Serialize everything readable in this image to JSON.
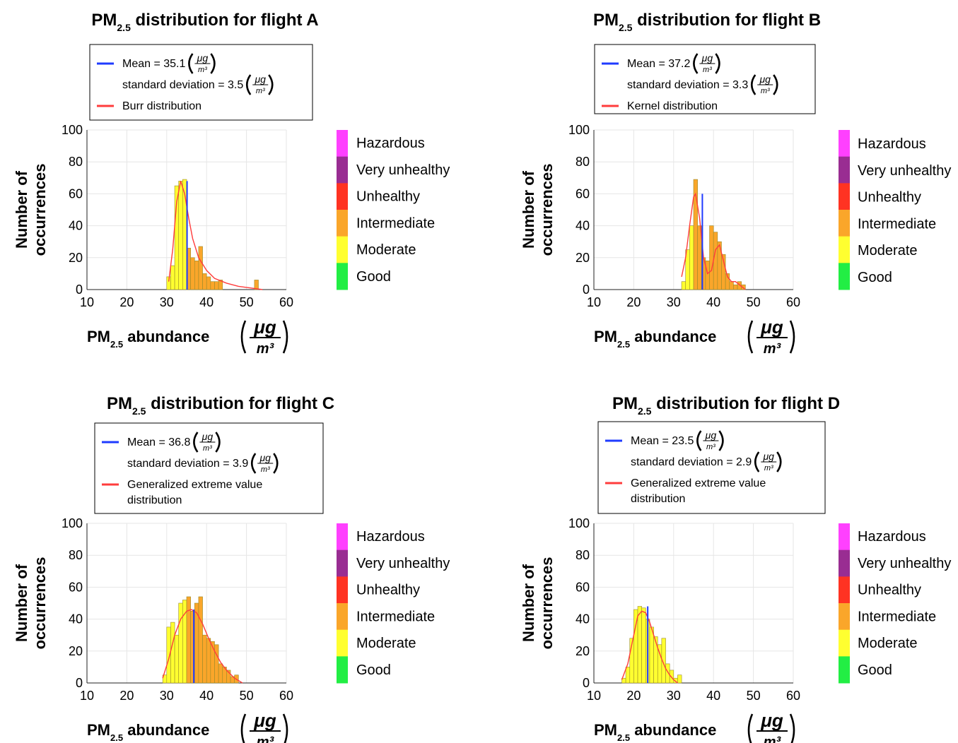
{
  "aqi_scale": {
    "labels": [
      "Hazardous",
      "Very unhealthy",
      "Unhealthy",
      "Intermediate",
      "Moderate",
      "Good"
    ],
    "colors": [
      "#ff40ff",
      "#992d92",
      "#ff3322",
      "#faa62a",
      "#ffff30",
      "#22ee44"
    ]
  },
  "line_colors": {
    "mean": "#1f3bff",
    "fit": "#ff3c3c"
  },
  "bar_stroke": "#9a8a2a",
  "chart_data": [
    {
      "type": "bar",
      "title_main": "PM",
      "title_sub": "2.5",
      "title_rest": " distribution for flight A",
      "xlabel_main": "PM",
      "xlabel_sub": "2.5",
      "xlabel_rest": " abundance",
      "unit_num": "μg",
      "unit_den": "m³",
      "ylabel_lines": [
        "Number of",
        "occurrences"
      ],
      "xlim": [
        10,
        60
      ],
      "ylim": [
        0,
        100
      ],
      "xticks": [
        10,
        20,
        30,
        40,
        50,
        60
      ],
      "yticks": [
        0,
        20,
        40,
        60,
        80,
        100
      ],
      "grid": true,
      "bin_width": 1,
      "bin_starts": [
        30,
        31,
        32,
        33,
        34,
        35,
        36,
        37,
        38,
        39,
        40,
        41,
        42,
        43,
        52
      ],
      "counts": [
        8,
        15,
        65,
        68,
        69,
        26,
        20,
        18,
        27,
        10,
        8,
        5,
        5,
        6,
        6
      ],
      "mean": 35.1,
      "mean_peak": 68,
      "legend_mean": "Mean = 35.1",
      "legend_sd": "standard deviation = 3.5",
      "legend_fit": [
        "Burr distribution"
      ],
      "fit": {
        "x": [
          30.5,
          31.5,
          32.5,
          33.5,
          34.5,
          35.5,
          36.5,
          38,
          40,
          42,
          45,
          48,
          51,
          54
        ],
        "y": [
          5,
          25,
          55,
          68,
          60,
          45,
          32,
          20,
          12,
          7,
          4,
          2,
          1,
          0
        ]
      }
    },
    {
      "type": "bar",
      "title_main": "PM",
      "title_sub": "2.5",
      "title_rest": " distribution for flight B",
      "xlabel_main": "PM",
      "xlabel_sub": "2.5",
      "xlabel_rest": " abundance",
      "unit_num": "μg",
      "unit_den": "m³",
      "ylabel_lines": [
        "Number of",
        "occurrences"
      ],
      "xlim": [
        10,
        60
      ],
      "ylim": [
        0,
        100
      ],
      "xticks": [
        10,
        20,
        30,
        40,
        50,
        60
      ],
      "yticks": [
        0,
        20,
        40,
        60,
        80,
        100
      ],
      "grid": true,
      "bin_width": 1,
      "bin_starts": [
        32,
        33,
        34,
        35,
        36,
        37,
        38,
        39,
        40,
        41,
        42,
        43,
        44,
        45,
        46,
        47
      ],
      "counts": [
        5,
        25,
        40,
        69,
        40,
        20,
        18,
        40,
        36,
        30,
        22,
        10,
        5,
        3,
        5,
        3
      ],
      "mean": 37.2,
      "mean_peak": 60,
      "legend_mean": "Mean = 37.2",
      "legend_sd": "standard deviation = 3.3",
      "legend_fit": [
        "Kernel distribution"
      ],
      "fit": {
        "x": [
          32,
          33,
          34,
          35,
          35.5,
          36.5,
          37.5,
          38.5,
          39.5,
          40.5,
          41.5,
          42.5,
          43.5,
          44.5,
          45.5,
          46.5,
          48
        ],
        "y": [
          8,
          20,
          40,
          58,
          60,
          45,
          20,
          10,
          12,
          25,
          28,
          18,
          8,
          5,
          5,
          3,
          0
        ]
      }
    },
    {
      "type": "bar",
      "title_main": "PM",
      "title_sub": "2.5",
      "title_rest": " distribution for flight C",
      "xlabel_main": "PM",
      "xlabel_sub": "2.5",
      "xlabel_rest": " abundance",
      "unit_num": "μg",
      "unit_den": "m³",
      "ylabel_lines": [
        "Number of",
        "occurrences"
      ],
      "xlim": [
        10,
        60
      ],
      "ylim": [
        0,
        100
      ],
      "xticks": [
        10,
        20,
        30,
        40,
        50,
        60
      ],
      "yticks": [
        0,
        20,
        40,
        60,
        80,
        100
      ],
      "grid": true,
      "bin_width": 1,
      "bin_starts": [
        29,
        30,
        31,
        32,
        33,
        34,
        35,
        36,
        37,
        38,
        39,
        40,
        41,
        42,
        43,
        44,
        45,
        46,
        47
      ],
      "counts": [
        5,
        35,
        38,
        30,
        50,
        52,
        54,
        45,
        50,
        54,
        30,
        28,
        26,
        24,
        12,
        10,
        8,
        4,
        5
      ],
      "mean": 36.8,
      "mean_peak": 46,
      "legend_mean": "Mean = 36.8",
      "legend_sd": "standard deviation = 3.9",
      "legend_fit": [
        "Generalized extreme value",
        "distribution"
      ],
      "fit": {
        "x": [
          29,
          30.5,
          32,
          33.5,
          35,
          36.2,
          37.5,
          39,
          40.5,
          42,
          43.5,
          45,
          47,
          49
        ],
        "y": [
          3,
          15,
          30,
          40,
          45,
          46,
          44,
          37,
          28,
          20,
          13,
          8,
          3,
          0
        ]
      }
    },
    {
      "type": "bar",
      "title_main": "PM",
      "title_sub": "2.5",
      "title_rest": " distribution for flight D",
      "xlabel_main": "PM",
      "xlabel_sub": "2.5",
      "xlabel_rest": " abundance",
      "unit_num": "μg",
      "unit_den": "m³",
      "ylabel_lines": [
        "Number of",
        "occurrences"
      ],
      "xlim": [
        10,
        60
      ],
      "ylim": [
        0,
        100
      ],
      "xticks": [
        10,
        20,
        30,
        40,
        50,
        60
      ],
      "yticks": [
        0,
        20,
        40,
        60,
        80,
        100
      ],
      "grid": true,
      "bin_width": 1,
      "bin_starts": [
        17,
        18,
        19,
        20,
        21,
        22,
        23,
        24,
        25,
        26,
        27,
        28,
        29,
        30,
        31
      ],
      "counts": [
        3,
        10,
        28,
        46,
        48,
        47,
        40,
        35,
        29,
        24,
        28,
        12,
        8,
        3,
        5
      ],
      "mean": 23.5,
      "mean_peak": 48,
      "legend_mean": "Mean = 23.5",
      "legend_sd": "standard deviation = 2.9",
      "legend_fit": [
        "Generalized extreme value",
        "distribution"
      ],
      "fit": {
        "x": [
          17,
          18.5,
          20,
          21,
          22,
          23,
          24,
          25,
          26,
          27,
          28,
          29,
          30,
          31
        ],
        "y": [
          2,
          12,
          30,
          42,
          45,
          44,
          38,
          30,
          22,
          15,
          9,
          5,
          2,
          0
        ]
      }
    }
  ]
}
